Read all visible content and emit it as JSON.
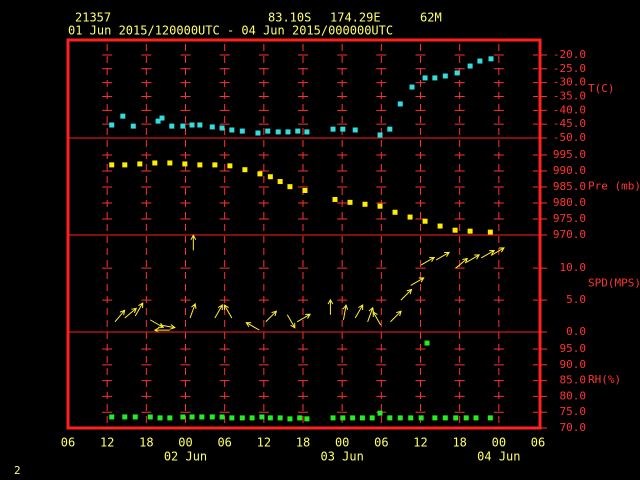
{
  "header": {
    "station": "21357",
    "lat": "83.10S",
    "lon": "174.29E",
    "elev": "62M",
    "period": "01 Jun 2015/120000UTC - 04 Jun 2015/000000UTC"
  },
  "footer": "2",
  "chart_data": [
    {
      "type": "scatter",
      "y_label": "T(C)",
      "color": "#33dddd",
      "x": [
        12.7,
        14.4,
        16.0,
        19.8,
        20.4,
        21.9,
        23.6,
        25.0,
        26.2,
        28.1,
        29.6,
        31.1,
        32.7,
        35.1,
        36.6,
        38.2,
        39.7,
        41.2,
        42.6,
        46.6,
        48.1,
        50.0,
        53.8,
        55.3,
        56.9,
        58.7,
        60.7,
        62.2,
        63.8,
        65.6,
        67.6,
        69.1,
        70.8
      ],
      "values": [
        -45.3,
        -42.1,
        -45.7,
        -43.9,
        -42.8,
        -45.7,
        -45.7,
        -45.3,
        -45.3,
        -46.0,
        -46.4,
        -47.1,
        -47.5,
        -48.2,
        -47.5,
        -47.8,
        -47.8,
        -47.5,
        -47.8,
        -46.8,
        -46.8,
        -47.1,
        -48.9,
        -46.8,
        -37.7,
        -31.6,
        -28.3,
        -28.3,
        -27.6,
        -26.5,
        -24.0,
        -22.2,
        -21.4
      ],
      "ylim": [
        -50,
        -14.6
      ],
      "yticks": [
        {
          "value": -20,
          "label": "-20.0"
        },
        {
          "value": -25,
          "label": "-25.0"
        },
        {
          "value": -30,
          "label": "-30.0"
        },
        {
          "value": -35,
          "label": "-35.0"
        },
        {
          "value": -40,
          "label": "-40.0"
        },
        {
          "value": -45,
          "label": "-45.0"
        },
        {
          "value": -50,
          "label": "-50.0"
        }
      ]
    },
    {
      "type": "scatter",
      "y_label": "Pre (mb)",
      "color": "#ffee00",
      "x": [
        12.7,
        14.7,
        17.0,
        19.3,
        21.6,
        23.9,
        26.2,
        28.5,
        30.8,
        33.1,
        35.4,
        37.0,
        38.5,
        40.0,
        42.3,
        46.9,
        49.2,
        51.5,
        53.8,
        56.1,
        58.4,
        60.7,
        63.0,
        65.3,
        67.6,
        70.7
      ],
      "values": [
        991.9,
        991.9,
        992.2,
        992.5,
        992.5,
        992.2,
        991.9,
        991.9,
        991.6,
        990.4,
        989.1,
        988.2,
        986.7,
        985.1,
        983.9,
        981.1,
        980.2,
        979.6,
        979.0,
        977.1,
        975.6,
        974.3,
        972.8,
        971.5,
        971.2,
        970.9
      ],
      "ylim": [
        970,
        1000.3
      ],
      "yticks": [
        {
          "value": 995,
          "label": "995.0"
        },
        {
          "value": 990,
          "label": "990.0"
        },
        {
          "value": 985,
          "label": "985.0"
        },
        {
          "value": 980,
          "label": "980.0"
        },
        {
          "value": 975,
          "label": "975.0"
        },
        {
          "value": 970,
          "label": "970.0"
        }
      ]
    },
    {
      "type": "vector",
      "y_label": "SPD(MPS)",
      "color": "#ffee33",
      "x": [
        13.2,
        14.7,
        16.3,
        18.6,
        20.1,
        21.6,
        24.7,
        25.2,
        28.5,
        31.1,
        35.3,
        36.3,
        39.6,
        41.1,
        46.2,
        48.2,
        50.0,
        51.9,
        53.9,
        55.4,
        57.0,
        58.5,
        60.1,
        62.4,
        65.4,
        67.0,
        69.3,
        70.8
      ],
      "values": [
        1.6,
        2.2,
        2.5,
        1.9,
        1.1,
        0.3,
        2.2,
        12.8,
        2.2,
        2.2,
        0.3,
        1.6,
        2.7,
        1.6,
        2.7,
        1.9,
        2.2,
        1.6,
        1.1,
        1.6,
        5.0,
        7.3,
        10.5,
        11.3,
        10.0,
        10.9,
        11.6,
        12.0
      ],
      "directions": [
        40,
        50,
        30,
        120,
        100,
        270,
        20,
        0,
        30,
        330,
        300,
        45,
        150,
        60,
        0,
        10,
        30,
        20,
        330,
        45,
        45,
        60,
        60,
        60,
        50,
        60,
        60,
        60
      ],
      "ylim": [
        0,
        15.2
      ],
      "yticks": [
        {
          "value": 10,
          "label": "10.0"
        },
        {
          "value": 5,
          "label": "5.0"
        },
        {
          "value": 0,
          "label": "0.0"
        }
      ]
    },
    {
      "type": "scatter",
      "y_label": "RH(%)",
      "color": "#22ee22",
      "x": [
        12.7,
        14.7,
        16.3,
        18.6,
        20.1,
        21.6,
        23.6,
        25.0,
        26.5,
        28.1,
        29.6,
        31.1,
        32.7,
        34.2,
        35.7,
        37.0,
        38.5,
        40.0,
        41.5,
        42.6,
        46.6,
        48.1,
        49.6,
        51.1,
        52.6,
        53.8,
        55.3,
        56.9,
        58.5,
        60.1,
        61.0,
        62.2,
        63.8,
        65.4,
        67.0,
        68.5,
        70.7
      ],
      "values": [
        73.5,
        73.5,
        73.5,
        73.5,
        73.2,
        73.2,
        73.5,
        73.5,
        73.5,
        73.5,
        73.5,
        73.2,
        73.2,
        73.2,
        73.5,
        73.2,
        73.2,
        72.9,
        73.2,
        72.9,
        73.2,
        73.2,
        73.2,
        73.2,
        73.2,
        74.7,
        73.2,
        73.2,
        73.2,
        73.2,
        96.9,
        73.2,
        73.2,
        73.2,
        73.2,
        73.2,
        73.2
      ],
      "ylim": [
        70,
        100.4
      ],
      "yticks": [
        {
          "value": 95,
          "label": "95.0"
        },
        {
          "value": 90,
          "label": "90.0"
        },
        {
          "value": 85,
          "label": "85.0"
        },
        {
          "value": 80,
          "label": "80.0"
        },
        {
          "value": 75,
          "label": "75.0"
        },
        {
          "value": 70,
          "label": "70.0"
        }
      ],
      "xlim": [
        6,
        78
      ],
      "xticks": [
        {
          "value": 6,
          "label": "06"
        },
        {
          "value": 12,
          "label": "12"
        },
        {
          "value": 18,
          "label": "18"
        },
        {
          "value": 24,
          "label": "00"
        },
        {
          "value": 30,
          "label": "06"
        },
        {
          "value": 36,
          "label": "12"
        },
        {
          "value": 42,
          "label": "18"
        },
        {
          "value": 48,
          "label": "00"
        },
        {
          "value": 54,
          "label": "06"
        },
        {
          "value": 60,
          "label": "12"
        },
        {
          "value": 66,
          "label": "18"
        },
        {
          "value": 72,
          "label": "00"
        },
        {
          "value": 78,
          "label": "06"
        }
      ],
      "xdates": [
        {
          "value": 24,
          "label": "02 Jun"
        },
        {
          "value": 48,
          "label": "03 Jun"
        },
        {
          "value": 72,
          "label": "04 Jun"
        }
      ]
    }
  ]
}
